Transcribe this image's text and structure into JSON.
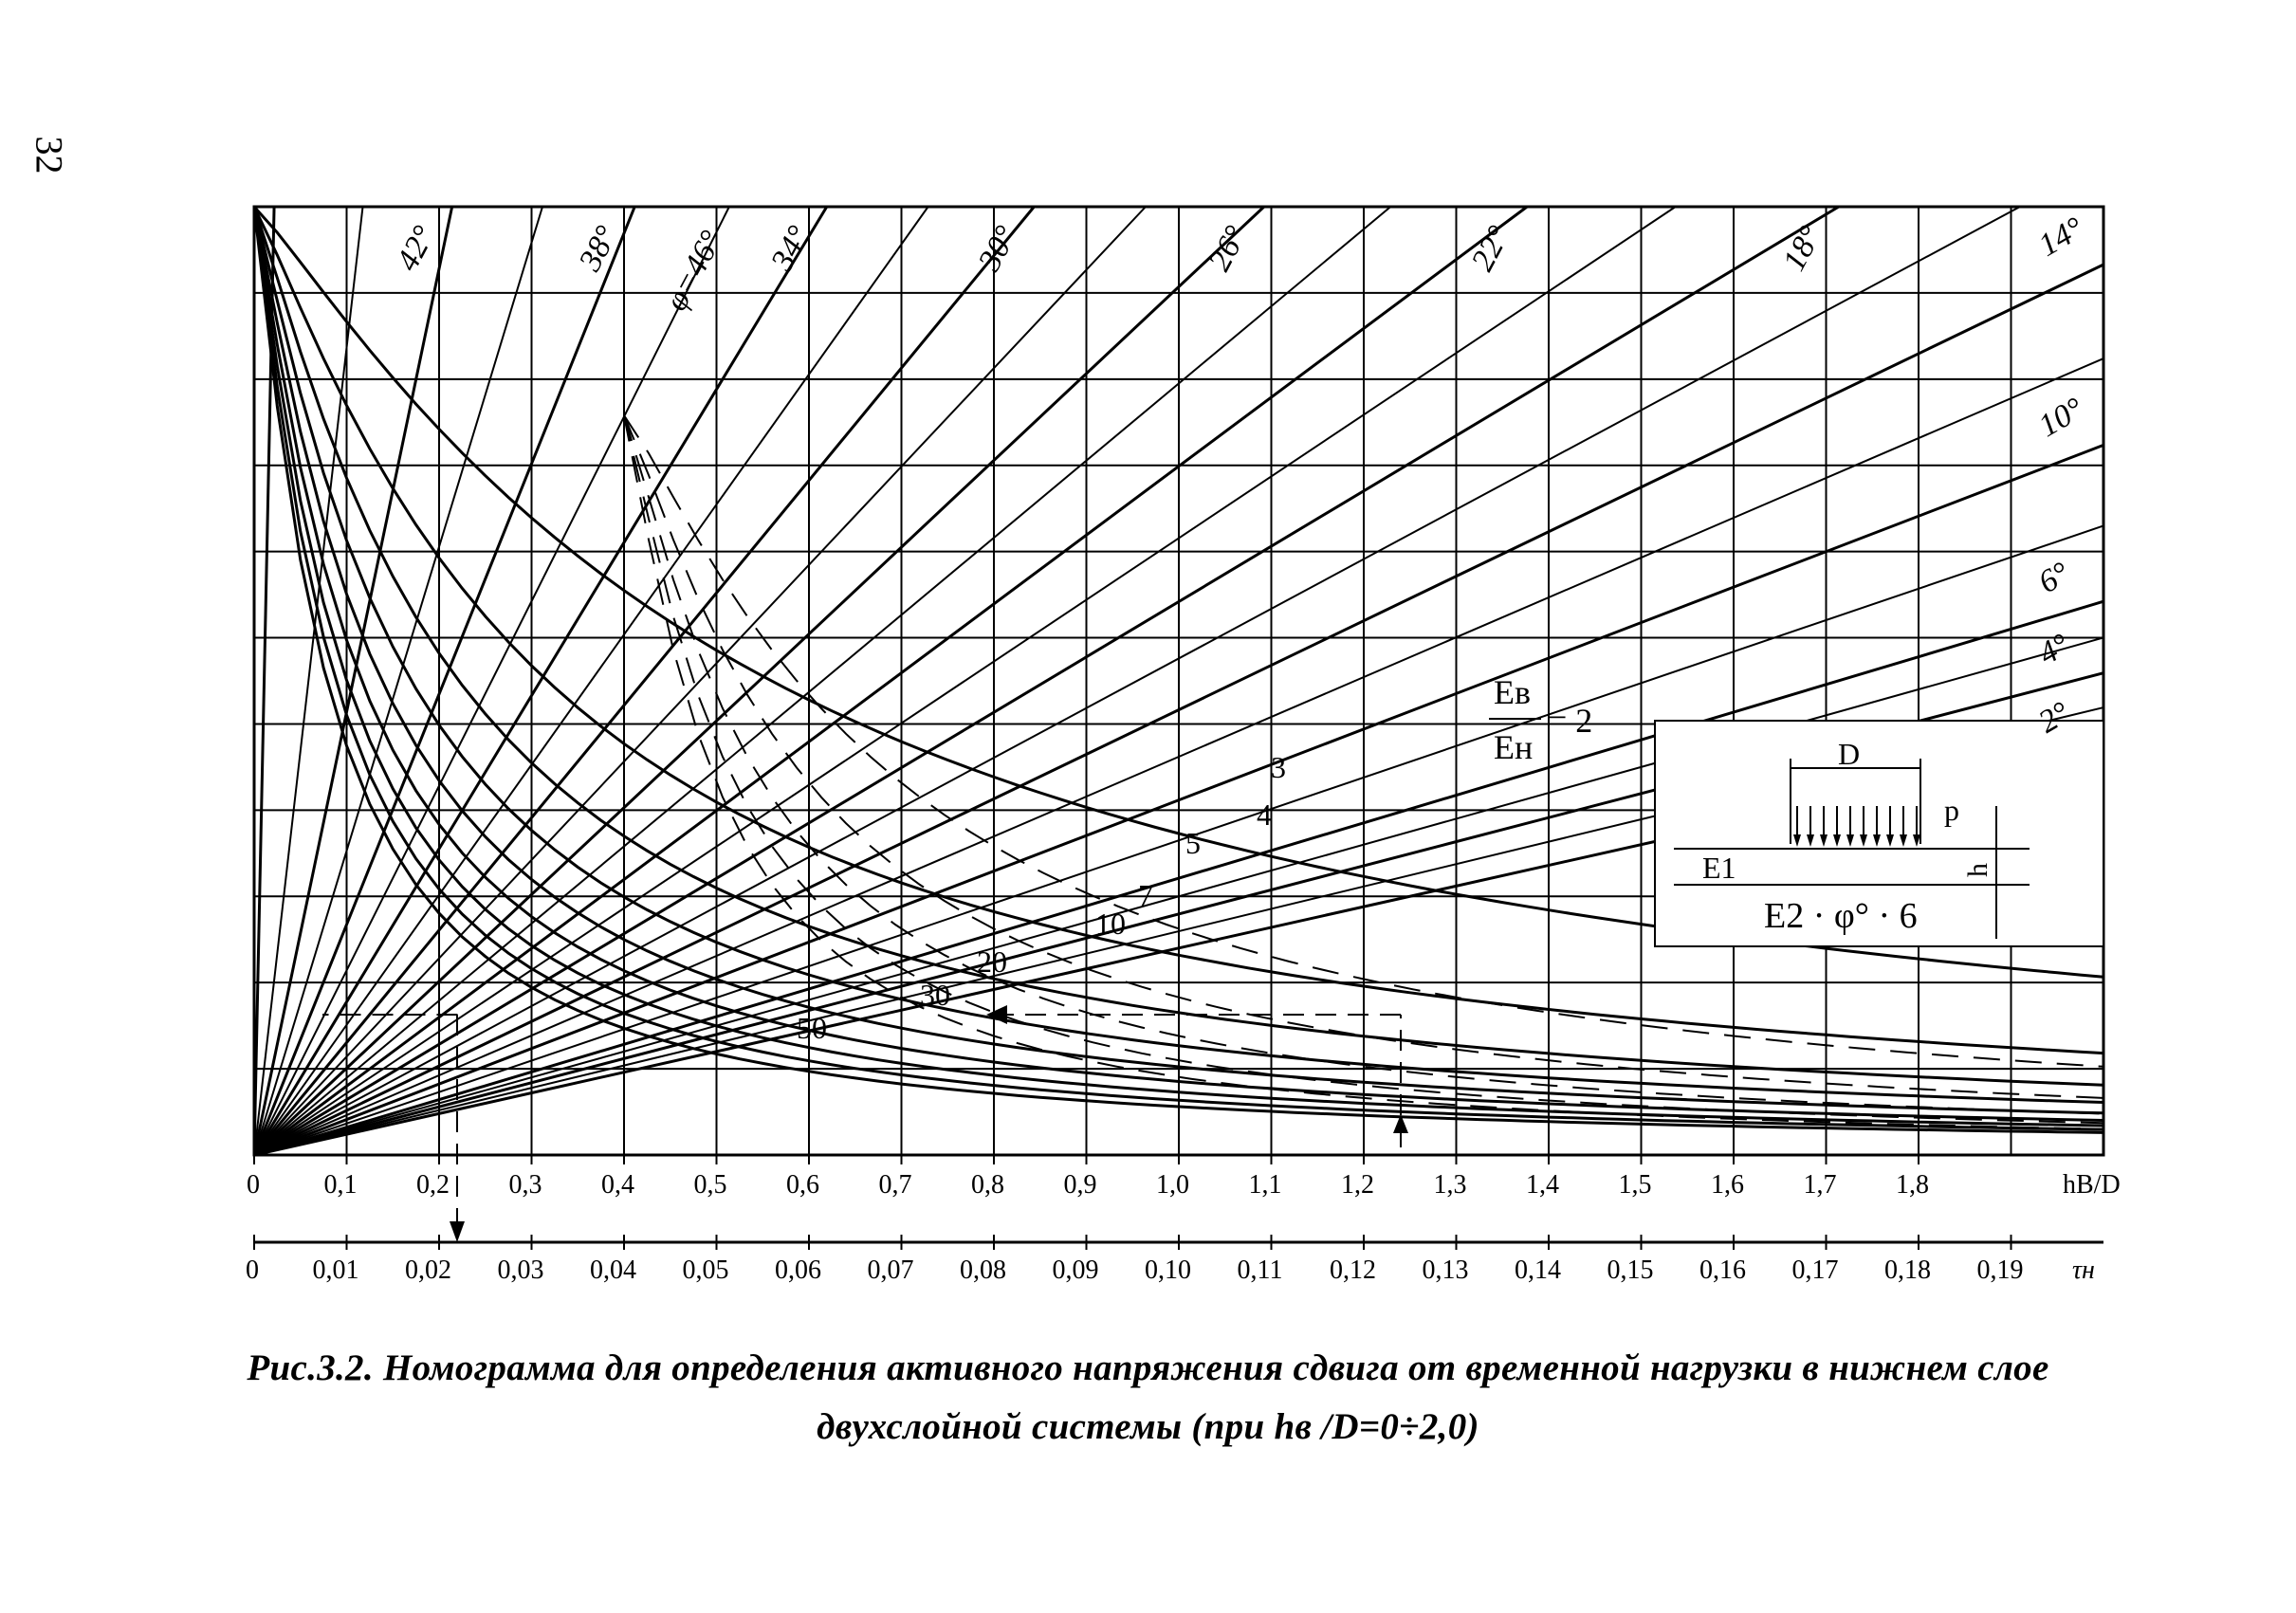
{
  "page": {
    "number": "32"
  },
  "caption": {
    "line1": "Рис.3.2. Номограмма для определения активного напряжения сдвига от временной нагрузки в нижнем слое",
    "line2": "двухслойной системы (при hв /D=0÷2,0)"
  },
  "chart_data": {
    "type": "line",
    "title": "",
    "x_axis": {
      "label": "hB/D",
      "range": [
        0,
        2.0
      ],
      "ticks": [
        "0",
        "0,1",
        "0,2",
        "0,3",
        "0,4",
        "0,5",
        "0,6",
        "0,7",
        "0,8",
        "0,9",
        "1,0",
        "1,1",
        "1,2",
        "1,3",
        "1,4",
        "1,5",
        "1,6",
        "1,7",
        "1,8"
      ]
    },
    "tau_axis": {
      "label": "τн",
      "range": [
        0,
        0.2
      ],
      "ticks": [
        "0",
        "0,01",
        "0,02",
        "0,03",
        "0,04",
        "0,05",
        "0,06",
        "0,07",
        "0,08",
        "0,09",
        "0,10",
        "0,11",
        "0,12",
        "0,13",
        "0,14",
        "0,15",
        "0,16",
        "0,17",
        "0,18",
        "0,19"
      ]
    },
    "grid": true,
    "phi_family": {
      "description_label": "φ=46°",
      "angles_deg": [
        2,
        4,
        6,
        10,
        14,
        18,
        22,
        26,
        30,
        34,
        38,
        42,
        46
      ],
      "labels": [
        "2°",
        "4°",
        "6°",
        "10°",
        "14°",
        "18°",
        "22°",
        "26°",
        "30°",
        "34°",
        "38°",
        "42°",
        "φ=46°"
      ]
    },
    "ratio_family": {
      "label_top": "Eв",
      "label_bottom": "Eн",
      "first_value_label": "= 2",
      "values": [
        2,
        3,
        4,
        5,
        7,
        10,
        20,
        30,
        50
      ],
      "labels": [
        "2",
        "3",
        "4",
        "5",
        "7",
        "10",
        "20",
        "30",
        "50"
      ]
    },
    "example_key": {
      "hB_over_D": 1.24,
      "tau": 0.022
    },
    "inset": {
      "load_width_label": "D",
      "pressure_label": "p",
      "thickness_label": "h",
      "upper_layer_label": "E1",
      "lower_layer_label": "E2 · φ° · 6"
    }
  }
}
